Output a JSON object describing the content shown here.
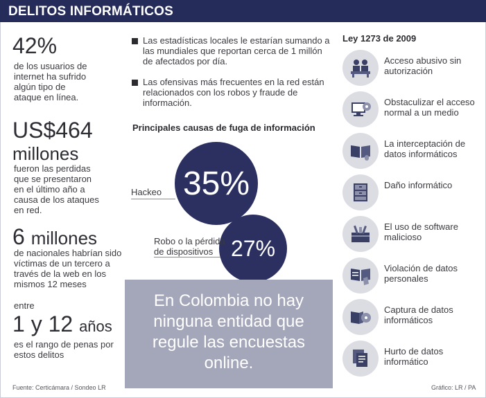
{
  "header": {
    "title": "DELITOS INFORMÁTICOS"
  },
  "left": {
    "stat1": {
      "value": "42%",
      "desc": [
        "de los usuarios de",
        "internet ha sufrido",
        "algún tipo de",
        "ataque en línea."
      ]
    },
    "stat2": {
      "value": "US$464",
      "unit": "millones",
      "desc": [
        "fueron las perdidas",
        "que se presentaron",
        "en el último año a",
        "causa de los ataques",
        "en red."
      ]
    },
    "stat3": {
      "value": "6",
      "unit": "millones",
      "desc": [
        "de nacionales habrían sido",
        "víctimas de un tercero a",
        "través de la web en los",
        "mismos 12 meses"
      ]
    },
    "stat4": {
      "pre": "entre",
      "value": "1 y 12",
      "unit": "años",
      "desc": [
        "es el rango de penas por",
        "estos delitos"
      ]
    }
  },
  "bullets": [
    {
      "text": "Las estadísticas locales le estarían sumando a las mundiales que reportan cerca de 1 millón de afectados por día."
    },
    {
      "text": "Las ofensivas más frecuentes en la red están relacionados con los robos y fraude de información."
    }
  ],
  "causes": {
    "title": "Principales causas de fuga de información",
    "items": [
      {
        "label": "Hackeo",
        "value": "35%"
      },
      {
        "label": "Robo o la pérdida de dispositivos",
        "value": "27%"
      }
    ]
  },
  "note": {
    "text": "En Colombia no hay ninguna entidad que regule las encuestas online."
  },
  "law": {
    "title": "Ley 1273 de 2009",
    "items": [
      {
        "icon": "people-at-desk-icon",
        "label": "Acceso abusivo sin autorización"
      },
      {
        "icon": "computer-disc-icon",
        "label": "Obstaculizar el acceso normal a un medio"
      },
      {
        "icon": "open-book-mouse-icon",
        "label": "La interceptación de datos informáticos"
      },
      {
        "icon": "cabinet-icon",
        "label": "Daño informático"
      },
      {
        "icon": "toolbox-icon",
        "label": "El uso de software malicioso"
      },
      {
        "icon": "book-hand-icon",
        "label": "Violación de datos personales"
      },
      {
        "icon": "book-disc-icon",
        "label": "Captura de datos informáticos"
      },
      {
        "icon": "documents-icon",
        "label": "Hurto de datos informático"
      }
    ]
  },
  "footer": {
    "source": "Fuente: Certicámara / Sondeo LR",
    "credit": "Gráfico: LR / PA"
  },
  "colors": {
    "header": "#252c5a",
    "circle": "#2b3060",
    "note_box": "#a4a6ba",
    "icon_bg": "#dcdde3"
  }
}
